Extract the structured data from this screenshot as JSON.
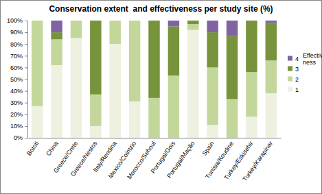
{
  "chart_data": {
    "type": "bar",
    "stacked": true,
    "title": "Conservation extent  and effectiveness per study site (%)",
    "categories": [
      "Bototi",
      "China",
      "Greece/Crete",
      "Greece/Nestos",
      "Italy/Rendina",
      "Mexico/Cointzio",
      "Morocco/Sehoul",
      "Portugal/Gois",
      "Portugal/Mação",
      "Spain",
      "Tunisia/Koudine",
      "Turkey/Eskisehir",
      "Turkey/Karapinar"
    ],
    "series": [
      {
        "name": "1",
        "color": "#eef0e0",
        "values": [
          27,
          62,
          85,
          10,
          80,
          31,
          0,
          0,
          92,
          11,
          0,
          18,
          38
        ]
      },
      {
        "name": "2",
        "color": "#c4d79b",
        "values": [
          73,
          22,
          15,
          27,
          20,
          69,
          34,
          53,
          5,
          49,
          33,
          38,
          28
        ]
      },
      {
        "name": "3",
        "color": "#77933c",
        "values": [
          0,
          6,
          0,
          63,
          0,
          0,
          66,
          42,
          3,
          30,
          54,
          44,
          32
        ]
      },
      {
        "name": "4",
        "color": "#8064a2",
        "values": [
          0,
          10,
          0,
          0,
          0,
          0,
          0,
          5,
          0,
          10,
          13,
          0,
          2
        ]
      }
    ],
    "legend_title": "Effective-ness",
    "legend": "right",
    "grid": false,
    "ylim": [
      0,
      100
    ],
    "yticks": [
      {
        "value": 0,
        "label": "0%"
      },
      {
        "value": 10,
        "label": "10%"
      },
      {
        "value": 20,
        "label": "20%"
      },
      {
        "value": 30,
        "label": "30%"
      },
      {
        "value": 40,
        "label": "40%"
      },
      {
        "value": 50,
        "label": "50%"
      },
      {
        "value": 60,
        "label": "60%"
      },
      {
        "value": 70,
        "label": "70%"
      },
      {
        "value": 80,
        "label": "80%"
      },
      {
        "value": 90,
        "label": "90%"
      },
      {
        "value": 100,
        "label": "100%"
      }
    ]
  }
}
